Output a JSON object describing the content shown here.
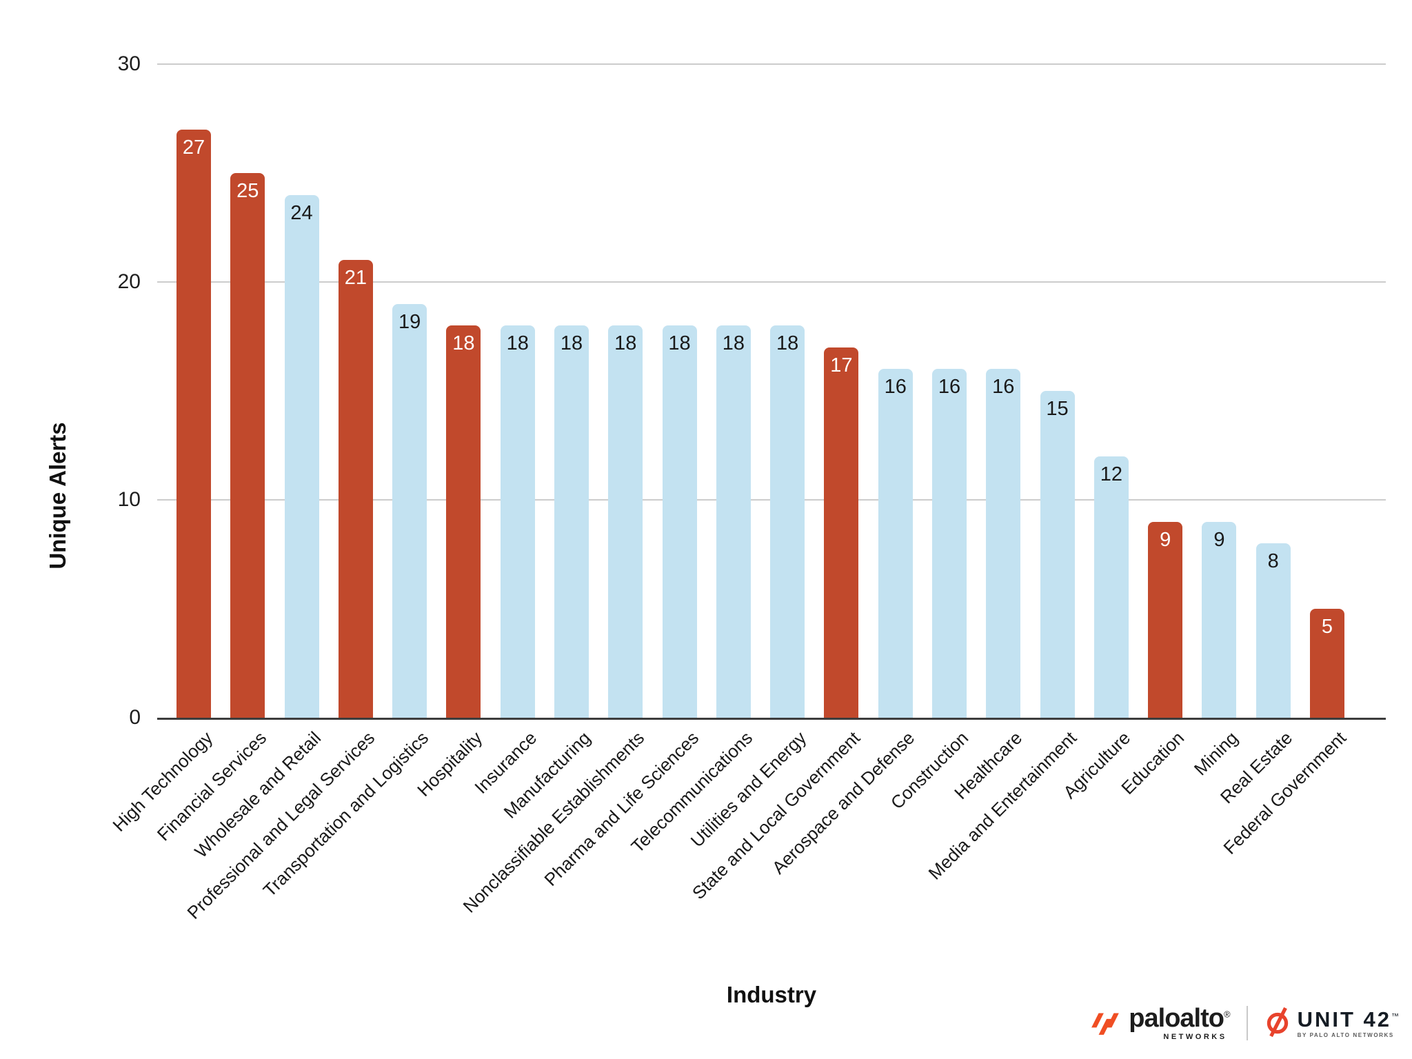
{
  "chart_data": {
    "type": "bar",
    "title": "",
    "xlabel": "Industry",
    "ylabel": "Unique Alerts",
    "ylim": [
      0,
      30
    ],
    "yticks": [
      0,
      10,
      20,
      30
    ],
    "grid": "horizontal",
    "legend": "none",
    "bar_colors": {
      "highlight": "#C1492C",
      "default": "#C3E2F1"
    },
    "value_label_colors": {
      "highlight": "#FFFFFF",
      "default": "#1A1A1A"
    },
    "bars": [
      {
        "label": "High Technology",
        "value": 27,
        "highlighted": true
      },
      {
        "label": "Financial Services",
        "value": 25,
        "highlighted": true
      },
      {
        "label": "Wholesale and Retail",
        "value": 24,
        "highlighted": false
      },
      {
        "label": "Professional and Legal Services",
        "value": 21,
        "highlighted": true
      },
      {
        "label": "Transportation and Logistics",
        "value": 19,
        "highlighted": false
      },
      {
        "label": "Hospitality",
        "value": 18,
        "highlighted": true
      },
      {
        "label": "Insurance",
        "value": 18,
        "highlighted": false
      },
      {
        "label": "Manufacturing",
        "value": 18,
        "highlighted": false
      },
      {
        "label": "Nonclassifiable Establishments",
        "value": 18,
        "highlighted": false
      },
      {
        "label": "Pharma and Life Sciences",
        "value": 18,
        "highlighted": false
      },
      {
        "label": "Telecommunications",
        "value": 18,
        "highlighted": false
      },
      {
        "label": "Utilities and Energy",
        "value": 18,
        "highlighted": false
      },
      {
        "label": "State and Local Government",
        "value": 17,
        "highlighted": true
      },
      {
        "label": "Aerospace and Defense",
        "value": 16,
        "highlighted": false
      },
      {
        "label": "Construction",
        "value": 16,
        "highlighted": false
      },
      {
        "label": "Healthcare",
        "value": 16,
        "highlighted": false
      },
      {
        "label": "Media and Entertainment",
        "value": 15,
        "highlighted": false
      },
      {
        "label": "Agriculture",
        "value": 12,
        "highlighted": false
      },
      {
        "label": "Education",
        "value": 9,
        "highlighted": true
      },
      {
        "label": "Mining",
        "value": 9,
        "highlighted": false
      },
      {
        "label": "Real Estate",
        "value": 8,
        "highlighted": false
      },
      {
        "label": "Federal Government",
        "value": 5,
        "highlighted": true
      }
    ]
  },
  "footer": {
    "paloalto_wordmark": "paloalto",
    "paloalto_registered": "®",
    "paloalto_sub": "NETWORKS",
    "unit42_wordmark": "UNIT 42",
    "unit42_trademark": "™",
    "unit42_sub": "BY PALO ALTO NETWORKS",
    "brand_orange": "#F04E23",
    "unit42_red": "#E8432C"
  }
}
